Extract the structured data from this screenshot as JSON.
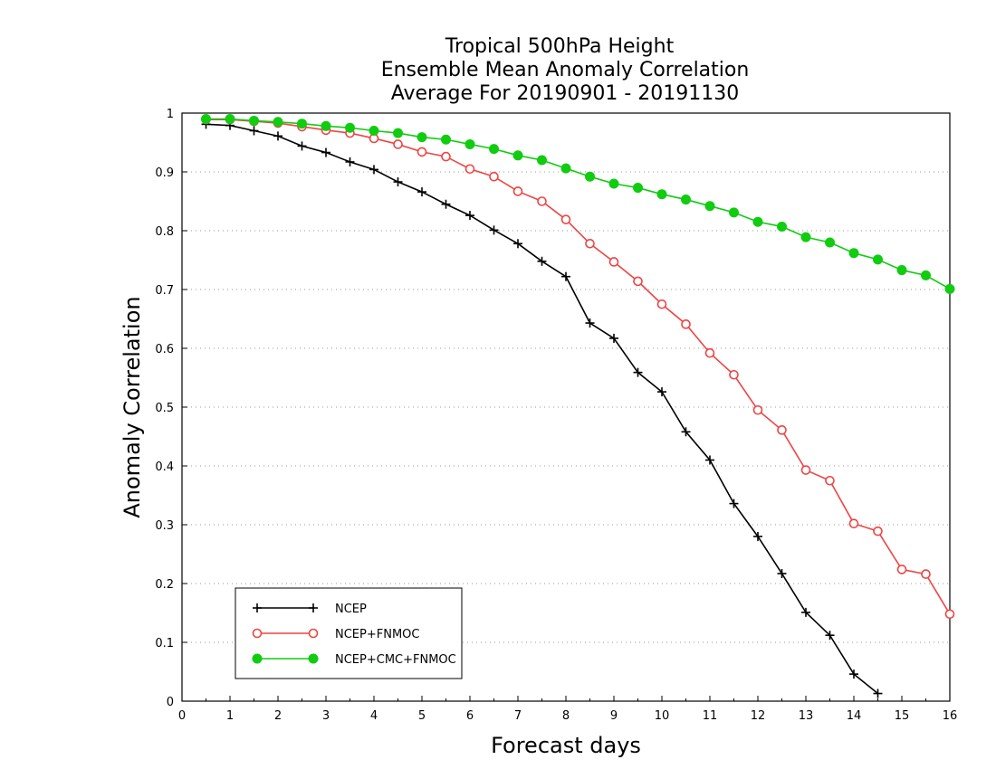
{
  "chart_data": {
    "type": "line",
    "title_lines": [
      "Tropical 500hPa Height",
      "Ensemble Mean Anomaly Correlation",
      "Average For 20190901 - 20191130"
    ],
    "xlabel": "Forecast days",
    "ylabel": "Anomaly Correlation",
    "xlim": [
      0,
      16
    ],
    "ylim": [
      0,
      1
    ],
    "x_ticks": [
      "0",
      "1",
      "2",
      "3",
      "4",
      "5",
      "6",
      "7",
      "8",
      "9",
      "10",
      "11",
      "12",
      "13",
      "14",
      "15",
      "16"
    ],
    "y_ticks": [
      "0",
      "0.1",
      "0.2",
      "0.3",
      "0.4",
      "0.5",
      "0.6",
      "0.7",
      "0.8",
      "0.9",
      "1"
    ],
    "grid": "dotted horizontal",
    "legend_position": "bottom-left",
    "series": [
      {
        "name": "NCEP",
        "color": "#000000",
        "marker": "plus",
        "x": [
          0.5,
          1,
          1.5,
          2,
          2.5,
          3,
          3.5,
          4,
          4.5,
          5,
          5.5,
          6,
          6.5,
          7,
          7.5,
          8,
          8.5,
          9,
          9.5,
          10,
          10.5,
          11,
          11.5,
          12,
          12.5,
          13,
          13.5,
          14,
          14.5
        ],
        "values": [
          0.981,
          0.979,
          0.97,
          0.961,
          0.944,
          0.933,
          0.917,
          0.904,
          0.883,
          0.866,
          0.845,
          0.826,
          0.801,
          0.778,
          0.748,
          0.722,
          0.643,
          0.617,
          0.559,
          0.526,
          0.458,
          0.41,
          0.336,
          0.28,
          0.217,
          0.151,
          0.112,
          0.046,
          0.013
        ]
      },
      {
        "name": "NCEP+FNMOC",
        "color": "#ee4444",
        "marker": "open-circle",
        "x": [
          0.5,
          1,
          1.5,
          2,
          2.5,
          3,
          3.5,
          4,
          4.5,
          5,
          5.5,
          6,
          6.5,
          7,
          7.5,
          8,
          8.5,
          9,
          9.5,
          10,
          10.5,
          11,
          11.5,
          12,
          12.5,
          13,
          13.5,
          14,
          14.5,
          15,
          15.5,
          16
        ],
        "values": [
          0.989,
          0.989,
          0.986,
          0.983,
          0.977,
          0.971,
          0.966,
          0.957,
          0.947,
          0.934,
          0.926,
          0.905,
          0.892,
          0.867,
          0.85,
          0.819,
          0.778,
          0.747,
          0.714,
          0.675,
          0.641,
          0.592,
          0.555,
          0.495,
          0.461,
          0.393,
          0.375,
          0.302,
          0.289,
          0.224,
          0.216,
          0.148
        ]
      },
      {
        "name": "NCEP+CMC+FNMOC",
        "color": "#11cc11",
        "marker": "filled-circle",
        "x": [
          0.5,
          1,
          1.5,
          2,
          2.5,
          3,
          3.5,
          4,
          4.5,
          5,
          5.5,
          6,
          6.5,
          7,
          7.5,
          8,
          8.5,
          9,
          9.5,
          10,
          10.5,
          11,
          11.5,
          12,
          12.5,
          13,
          13.5,
          14,
          14.5,
          15,
          15.5,
          16
        ],
        "values": [
          0.99,
          0.99,
          0.987,
          0.985,
          0.982,
          0.978,
          0.975,
          0.97,
          0.966,
          0.959,
          0.955,
          0.947,
          0.939,
          0.928,
          0.92,
          0.906,
          0.892,
          0.88,
          0.873,
          0.862,
          0.853,
          0.842,
          0.831,
          0.815,
          0.807,
          0.789,
          0.78,
          0.762,
          0.751,
          0.733,
          0.724,
          0.701
        ]
      }
    ]
  }
}
